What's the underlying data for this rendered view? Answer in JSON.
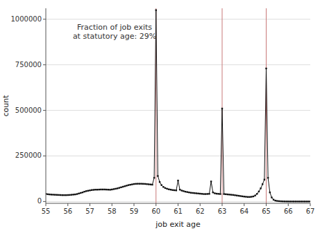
{
  "chart_data": {
    "type": "line",
    "xlabel": "job exit age",
    "ylabel": "count",
    "annotation": "Fraction of job exits\nat statutory age: 29%",
    "xlim": [
      55,
      67
    ],
    "ylim": [
      -10000,
      1060000
    ],
    "xticks": [
      55,
      56,
      57,
      58,
      59,
      60,
      61,
      62,
      63,
      64,
      65,
      66,
      67
    ],
    "yticks": [
      0,
      250000,
      500000,
      750000,
      1000000
    ],
    "grid": true,
    "color": "#111111",
    "marker": "square",
    "vertical_lines": [
      60,
      63,
      65
    ],
    "vertical_line_color": "#c87878",
    "x": [
      55.0,
      55.083,
      55.167,
      55.25,
      55.333,
      55.417,
      55.5,
      55.583,
      55.667,
      55.75,
      55.833,
      55.917,
      56.0,
      56.083,
      56.167,
      56.25,
      56.333,
      56.417,
      56.5,
      56.583,
      56.667,
      56.75,
      56.833,
      56.917,
      57.0,
      57.083,
      57.167,
      57.25,
      57.333,
      57.417,
      57.5,
      57.583,
      57.667,
      57.75,
      57.833,
      57.917,
      58.0,
      58.083,
      58.167,
      58.25,
      58.333,
      58.417,
      58.5,
      58.583,
      58.667,
      58.75,
      58.833,
      58.917,
      59.0,
      59.083,
      59.167,
      59.25,
      59.333,
      59.417,
      59.5,
      59.583,
      59.667,
      59.75,
      59.833,
      59.917,
      60.0,
      60.083,
      60.167,
      60.25,
      60.333,
      60.417,
      60.5,
      60.583,
      60.667,
      60.75,
      60.833,
      60.917,
      61.0,
      61.083,
      61.167,
      61.25,
      61.333,
      61.417,
      61.5,
      61.583,
      61.667,
      61.75,
      61.833,
      61.917,
      62.0,
      62.083,
      62.167,
      62.25,
      62.333,
      62.417,
      62.5,
      62.583,
      62.667,
      62.75,
      62.833,
      62.917,
      63.0,
      63.083,
      63.167,
      63.25,
      63.333,
      63.417,
      63.5,
      63.583,
      63.667,
      63.75,
      63.833,
      63.917,
      64.0,
      64.083,
      64.167,
      64.25,
      64.333,
      64.417,
      64.5,
      64.583,
      64.667,
      64.75,
      64.833,
      64.917,
      65.0,
      65.083,
      65.167,
      65.25,
      65.333,
      65.417,
      65.5,
      65.583,
      65.667,
      65.75,
      65.833,
      65.917,
      66.0,
      66.083,
      66.167,
      66.25,
      66.333,
      66.417,
      66.5,
      66.583,
      66.667,
      66.75,
      66.833,
      66.917,
      67.0
    ],
    "values": [
      42000,
      40000,
      39000,
      38000,
      37500,
      37000,
      36500,
      36000,
      35500,
      35000,
      35000,
      35000,
      35500,
      36000,
      37000,
      38000,
      39000,
      41000,
      44000,
      47000,
      50000,
      54000,
      57000,
      59000,
      61000,
      63000,
      64000,
      65000,
      65000,
      65500,
      66000,
      66000,
      66000,
      65500,
      65000,
      64500,
      66000,
      68000,
      70000,
      72000,
      75000,
      78000,
      81000,
      84000,
      87000,
      90000,
      92000,
      94000,
      96000,
      97000,
      97500,
      97500,
      97500,
      97000,
      96500,
      95500,
      94500,
      93500,
      92500,
      130000,
      1050000,
      140000,
      107000,
      90000,
      80000,
      74000,
      70000,
      67000,
      65000,
      63000,
      62000,
      61000,
      115000,
      65000,
      60000,
      57000,
      54000,
      52000,
      50000,
      48000,
      47000,
      46000,
      45000,
      44000,
      43000,
      42000,
      41000,
      41000,
      41500,
      42000,
      110000,
      50000,
      45000,
      43000,
      42000,
      41000,
      510000,
      41000,
      40000,
      39000,
      38000,
      37000,
      36000,
      34500,
      33000,
      31500,
      30000,
      28500,
      27000,
      26000,
      25000,
      25000,
      26000,
      28000,
      33000,
      42000,
      55000,
      72000,
      95000,
      120000,
      730000,
      130000,
      50000,
      22000,
      10000,
      5000,
      3000,
      2000,
      1200,
      800,
      500,
      300,
      200,
      150,
      120,
      100,
      80,
      70,
      60,
      50,
      45,
      40,
      35,
      30,
      25
    ]
  }
}
